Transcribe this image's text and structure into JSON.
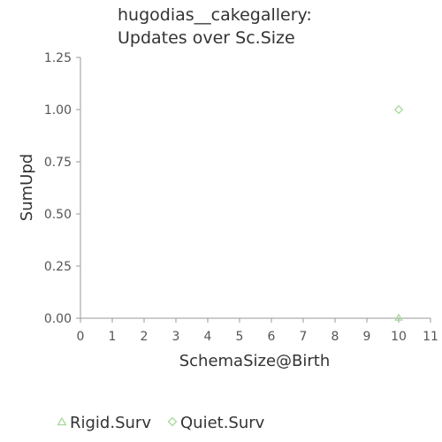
{
  "chart_data": {
    "type": "scatter",
    "title": "hugodias__cakegallery:",
    "subtitle": "Updates over Sc.Size",
    "xlabel": "SchemaSize@Birth",
    "ylabel": "SumUpd",
    "xlim": [
      0,
      11
    ],
    "ylim": [
      0,
      1.25
    ],
    "x_ticks": [
      "0",
      "1",
      "2",
      "3",
      "4",
      "5",
      "6",
      "7",
      "8",
      "9",
      "10",
      "11"
    ],
    "y_ticks": [
      "0.00",
      "0.25",
      "0.50",
      "0.75",
      "1.00",
      "1.25"
    ],
    "grid": false,
    "legend_position": "bottom-left",
    "series": [
      {
        "name": "Rigid.Surv",
        "marker": "triangle",
        "color": "#a6d99a",
        "points": [
          {
            "x": 10,
            "y": 0
          }
        ]
      },
      {
        "name": "Quiet.Surv",
        "marker": "diamond",
        "color": "#a6d99a",
        "points": [
          {
            "x": 10,
            "y": 1
          }
        ]
      }
    ]
  }
}
